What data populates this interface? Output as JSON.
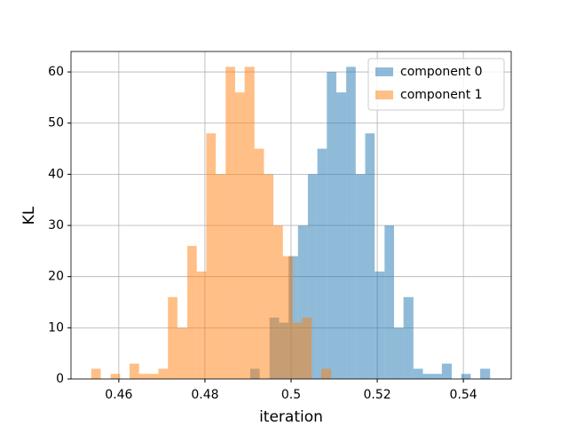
{
  "chart_data": {
    "type": "histogram",
    "x_label": "iteration",
    "y_label": "KL",
    "xlim": [
      0.4489,
      0.5511
    ],
    "ylim": [
      0,
      64
    ],
    "xticks": [
      0.46,
      0.48,
      0.5,
      0.52,
      0.54
    ],
    "yticks": [
      0,
      10,
      20,
      30,
      40,
      50,
      60
    ],
    "grid": true,
    "legend": "upper right",
    "alpha": 0.5,
    "series": [
      {
        "name": "component 0",
        "color": "#1f77b4",
        "bins": [
          0.4905,
          0.4927,
          0.495,
          0.4972,
          0.4994,
          0.5016,
          0.5039,
          0.5061,
          0.5083,
          0.5105,
          0.5128,
          0.515,
          0.5172,
          0.5194,
          0.5217,
          0.5239,
          0.5261,
          0.5284,
          0.5306,
          0.5328,
          0.535,
          0.5373,
          0.5395,
          0.5417,
          0.5439,
          0.5462
        ],
        "values": [
          2,
          0,
          12,
          11,
          24,
          30,
          40,
          45,
          60,
          56,
          61,
          40,
          48,
          21,
          30,
          10,
          16,
          2,
          1,
          1,
          3,
          0,
          1,
          0,
          2
        ]
      },
      {
        "name": "component 1",
        "color": "#ff7f0e",
        "bins": [
          0.4536,
          0.4558,
          0.4581,
          0.4603,
          0.4625,
          0.4647,
          0.467,
          0.4692,
          0.4714,
          0.4736,
          0.4759,
          0.4781,
          0.4803,
          0.4825,
          0.4848,
          0.487,
          0.4892,
          0.4915,
          0.4937,
          0.4959,
          0.4981,
          0.5004,
          0.5026,
          0.5048,
          0.507,
          0.5093
        ],
        "values": [
          2,
          0,
          1,
          0,
          3,
          1,
          1,
          2,
          16,
          10,
          26,
          21,
          48,
          40,
          61,
          56,
          61,
          45,
          40,
          30,
          24,
          11,
          12,
          0,
          2
        ]
      }
    ]
  }
}
